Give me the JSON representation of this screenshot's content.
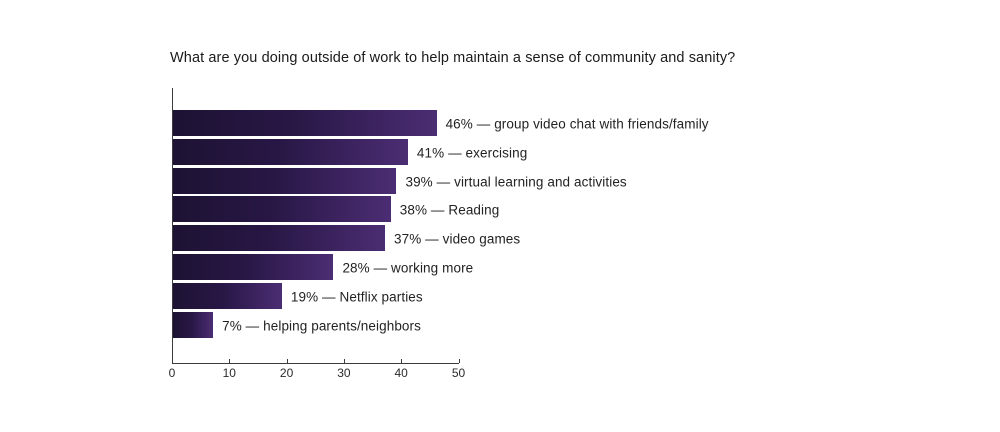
{
  "chart_data": {
    "type": "bar",
    "orientation": "horizontal",
    "title": "What are you doing outside of work to help maintain a sense of community and sanity?",
    "items": [
      {
        "value": 46,
        "category": "group video chat with friends/family",
        "display": "46% — group video chat with friends/family"
      },
      {
        "value": 41,
        "category": "exercising",
        "display": "41% — exercising"
      },
      {
        "value": 39,
        "category": "virtual learning and activities",
        "display": "39% — virtual learning and activities"
      },
      {
        "value": 38,
        "category": "Reading",
        "display": "38% — Reading"
      },
      {
        "value": 37,
        "category": "video games",
        "display": "37% — video games"
      },
      {
        "value": 28,
        "category": "working more",
        "display": "28% — working more"
      },
      {
        "value": 19,
        "category": "Netflix parties",
        "display": "19% — Netflix parties"
      },
      {
        "value": 7,
        "category": "helping parents/neighbors",
        "display": "7% — helping parents/neighbors"
      }
    ],
    "xlabel": "",
    "ylabel": "",
    "xlim": [
      0,
      50
    ],
    "xticks": [
      0,
      10,
      20,
      30,
      40,
      50
    ],
    "grid": false,
    "legend": "none",
    "value_suffix": "%",
    "colors": {
      "bar_gradient_left": "#1d1233",
      "bar_gradient_mid": "#281745",
      "bar_gradient_right": "#4b2d73",
      "axis": "#3b3b3b",
      "title_text": "#1b1b1b",
      "label_text": "#222222",
      "tick_text": "#2b2b2b",
      "background": "#ffffff"
    }
  }
}
